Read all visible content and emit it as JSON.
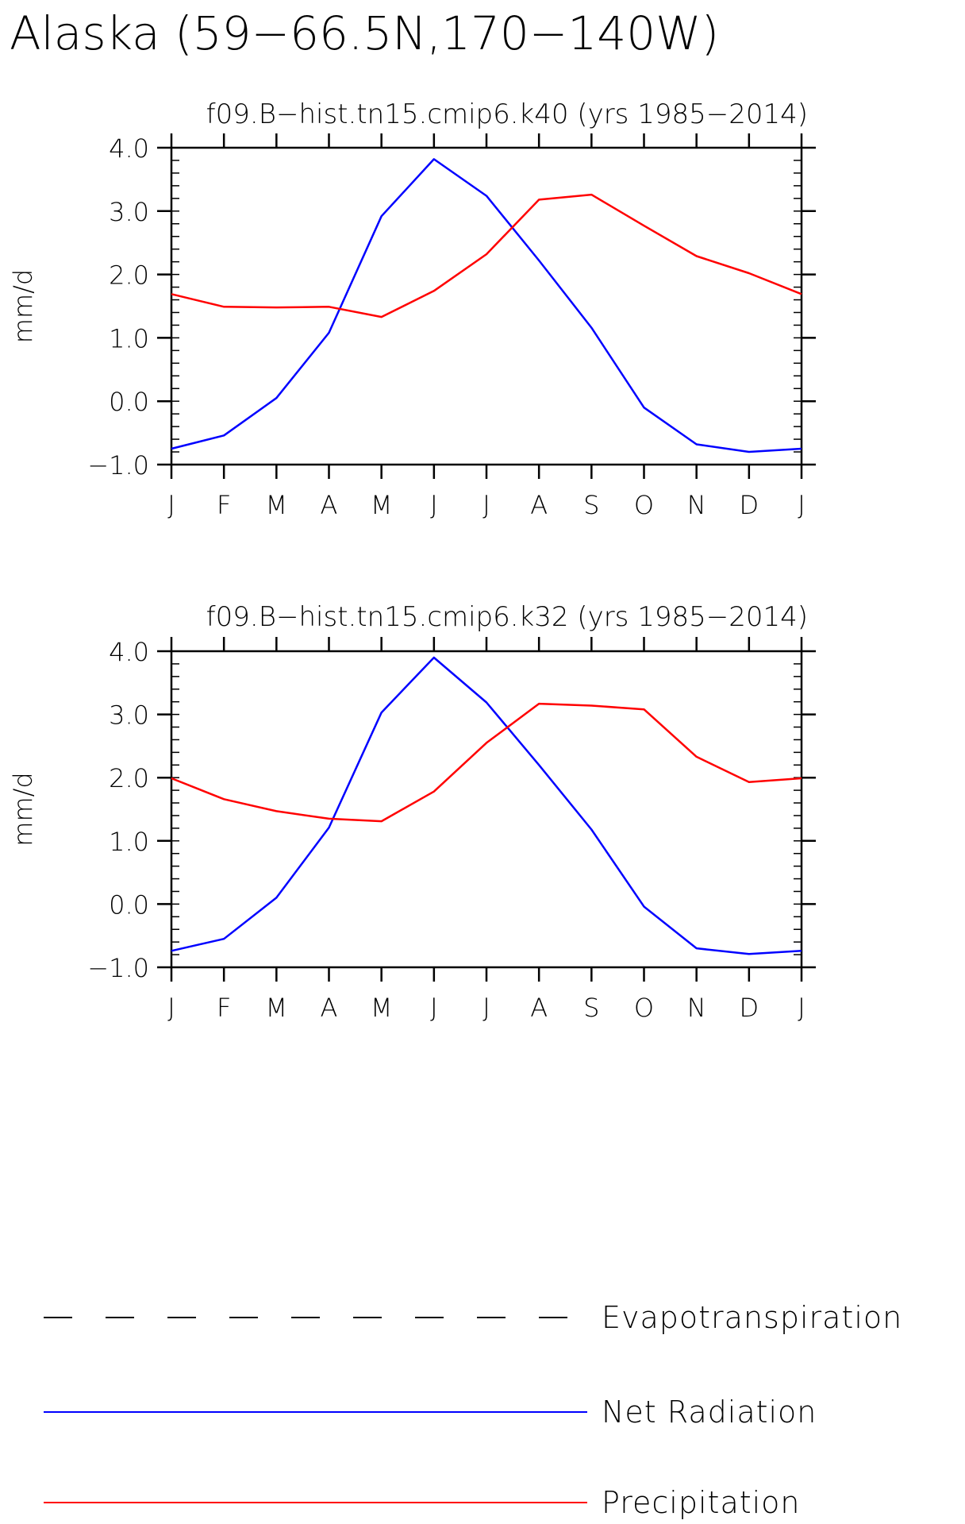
{
  "figure": {
    "title": "Alaska (59−66.5N,170−140W)"
  },
  "chart_data": [
    {
      "type": "line",
      "title": "f09.B−hist.tn15.cmip6.k40 (yrs 1985−2014)",
      "xlabel": "",
      "ylabel": "mm/d",
      "categories": [
        "J",
        "F",
        "M",
        "A",
        "M",
        "J",
        "J",
        "A",
        "S",
        "O",
        "N",
        "D",
        "J"
      ],
      "ylim": [
        -1.0,
        4.0
      ],
      "yticks": [
        "4.0",
        "3.0",
        "2.0",
        "1.0",
        "0.0",
        "−1.0"
      ],
      "ytick_values": [
        4.0,
        3.0,
        2.0,
        1.0,
        0.0,
        -1.0
      ],
      "grid": false,
      "series": [
        {
          "name": "Net Radiation",
          "color": "#0000ff",
          "values": [
            -0.75,
            -0.54,
            0.05,
            1.08,
            2.92,
            3.82,
            3.24,
            2.22,
            1.16,
            -0.1,
            -0.68,
            -0.8,
            -0.75
          ]
        },
        {
          "name": "Precipitation",
          "color": "#ff0000",
          "values": [
            1.69,
            1.49,
            1.48,
            1.49,
            1.33,
            1.74,
            2.32,
            3.18,
            3.26,
            2.77,
            2.29,
            2.02,
            1.69
          ]
        }
      ]
    },
    {
      "type": "line",
      "title": "f09.B−hist.tn15.cmip6.k32 (yrs 1985−2014)",
      "xlabel": "",
      "ylabel": "mm/d",
      "categories": [
        "J",
        "F",
        "M",
        "A",
        "M",
        "J",
        "J",
        "A",
        "S",
        "O",
        "N",
        "D",
        "J"
      ],
      "ylim": [
        -1.0,
        4.0
      ],
      "yticks": [
        "4.0",
        "3.0",
        "2.0",
        "1.0",
        "0.0",
        "−1.0"
      ],
      "ytick_values": [
        4.0,
        3.0,
        2.0,
        1.0,
        0.0,
        -1.0
      ],
      "grid": false,
      "series": [
        {
          "name": "Net Radiation",
          "color": "#0000ff",
          "values": [
            -0.74,
            -0.55,
            0.1,
            1.21,
            3.03,
            3.9,
            3.19,
            2.2,
            1.18,
            -0.04,
            -0.7,
            -0.79,
            -0.74
          ]
        },
        {
          "name": "Precipitation",
          "color": "#ff0000",
          "values": [
            1.99,
            1.66,
            1.47,
            1.35,
            1.31,
            1.78,
            2.55,
            3.17,
            3.14,
            3.08,
            2.33,
            1.93,
            1.99
          ]
        }
      ]
    }
  ],
  "legend": {
    "placement": "bottom",
    "items": [
      {
        "label": "Evapotranspiration",
        "color": "#000000",
        "style": "dashed"
      },
      {
        "label": "Net Radiation",
        "color": "#0000ff",
        "style": "solid"
      },
      {
        "label": "Precipitation",
        "color": "#ff0000",
        "style": "solid"
      }
    ]
  }
}
